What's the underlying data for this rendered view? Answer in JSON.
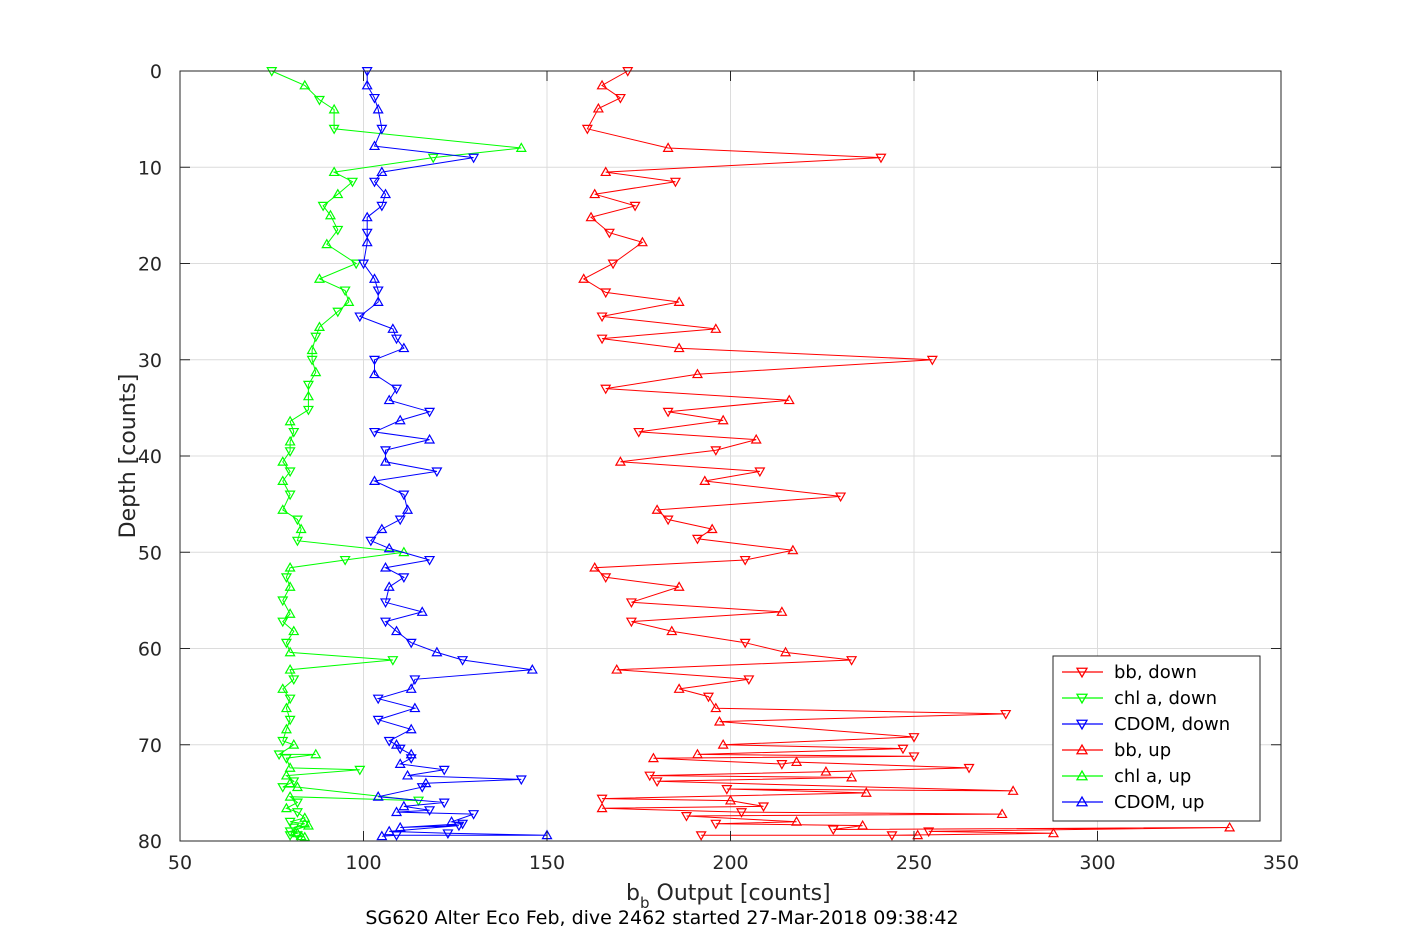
{
  "chart_data": {
    "type": "line",
    "xlabel_main": "b",
    "xlabel_sub": "b",
    "xlabel_rest": "Output [counts]",
    "ylabel": "Depth [counts]",
    "footer": "SG620 Alter Eco Feb, dive 2462 started 27-Mar-2018 09:38:42",
    "xlim": [
      50,
      350
    ],
    "ylim": [
      0,
      80
    ],
    "y_reversed": true,
    "grid": true,
    "legend_position": "bottom-right",
    "xticks": [
      "50",
      "100",
      "150",
      "200",
      "250",
      "300",
      "350"
    ],
    "yticks": [
      "0",
      "10",
      "20",
      "30",
      "40",
      "50",
      "60",
      "70",
      "80"
    ],
    "series": [
      {
        "name": "bb, down",
        "color": "#ff0000",
        "marker": "triangle-down",
        "points": [
          [
            172,
            0
          ],
          [
            165,
            1.5
          ],
          [
            170,
            2.8
          ],
          [
            164,
            3.9
          ],
          [
            161,
            6
          ],
          [
            183,
            8
          ],
          [
            241,
            9
          ],
          [
            166,
            10.5
          ],
          [
            185,
            11.5
          ],
          [
            163,
            12.8
          ],
          [
            174,
            14
          ],
          [
            162,
            15.2
          ],
          [
            167,
            16.8
          ],
          [
            176,
            17.8
          ],
          [
            168,
            20
          ],
          [
            160,
            21.6
          ],
          [
            166,
            23
          ],
          [
            186,
            24
          ],
          [
            165,
            25.5
          ],
          [
            196,
            26.8
          ],
          [
            165,
            27.8
          ],
          [
            186,
            28.8
          ],
          [
            255,
            30
          ],
          [
            191,
            31.5
          ],
          [
            166,
            33
          ],
          [
            216,
            34.2
          ],
          [
            183,
            35.4
          ],
          [
            198,
            36.3
          ],
          [
            175,
            37.5
          ],
          [
            207,
            38.3
          ],
          [
            196,
            39.4
          ],
          [
            170,
            40.6
          ],
          [
            208,
            41.6
          ],
          [
            193,
            42.6
          ],
          [
            230,
            44.2
          ],
          [
            180,
            45.6
          ],
          [
            183,
            46.6
          ],
          [
            195,
            47.6
          ],
          [
            191,
            48.6
          ],
          [
            217,
            49.8
          ],
          [
            204,
            50.8
          ],
          [
            163,
            51.6
          ],
          [
            166,
            52.6
          ],
          [
            186,
            53.6
          ],
          [
            173,
            55.2
          ],
          [
            214,
            56.2
          ],
          [
            173,
            57.2
          ],
          [
            184,
            58.2
          ],
          [
            204,
            59.4
          ],
          [
            215,
            60.4
          ],
          [
            233,
            61.2
          ],
          [
            169,
            62.2
          ],
          [
            205,
            63.2
          ],
          [
            186,
            64.2
          ],
          [
            194,
            65
          ],
          [
            196,
            66.2
          ],
          [
            275,
            66.8
          ],
          [
            197,
            67.6
          ],
          [
            250,
            69.2
          ],
          [
            198,
            70
          ],
          [
            247,
            70.4
          ],
          [
            191,
            71
          ],
          [
            250,
            71.2
          ],
          [
            179,
            71.4
          ],
          [
            214,
            72
          ],
          [
            218,
            71.8
          ],
          [
            265,
            72.4
          ],
          [
            226,
            72.8
          ],
          [
            178,
            73.2
          ],
          [
            233,
            73.4
          ],
          [
            180,
            73.8
          ],
          [
            277,
            74.8
          ],
          [
            199,
            74.6
          ],
          [
            237,
            75
          ],
          [
            165,
            75.6
          ],
          [
            200,
            75.8
          ],
          [
            209,
            76.4
          ],
          [
            165,
            76.6
          ],
          [
            203,
            77
          ],
          [
            274,
            77.2
          ],
          [
            188,
            77.4
          ],
          [
            218,
            78
          ],
          [
            196,
            78.2
          ],
          [
            236,
            78.4
          ],
          [
            228,
            78.8
          ],
          [
            336,
            78.6
          ],
          [
            254,
            79
          ],
          [
            288,
            79.2
          ],
          [
            244,
            79.4
          ],
          [
            251,
            79.4
          ],
          [
            192,
            79.4
          ]
        ]
      },
      {
        "name": "chl a, down",
        "color": "#00ff00",
        "marker": "triangle-down",
        "points": [
          [
            75,
            0
          ],
          [
            84,
            1.5
          ],
          [
            88,
            3
          ],
          [
            92,
            4
          ],
          [
            92,
            6
          ],
          [
            143,
            8
          ],
          [
            119,
            9
          ],
          [
            92,
            10.5
          ],
          [
            97,
            11.5
          ],
          [
            93,
            12.8
          ],
          [
            89,
            14
          ],
          [
            91,
            15
          ],
          [
            93,
            16.5
          ],
          [
            90,
            18
          ],
          [
            98,
            20
          ],
          [
            88,
            21.6
          ],
          [
            95,
            22.8
          ],
          [
            96,
            24
          ],
          [
            93,
            25
          ],
          [
            88,
            26.6
          ],
          [
            87,
            27.6
          ],
          [
            86,
            29
          ],
          [
            86,
            30
          ],
          [
            87,
            31.3
          ],
          [
            85,
            32.6
          ],
          [
            85,
            33.8
          ],
          [
            85,
            35.2
          ],
          [
            80,
            36.4
          ],
          [
            81,
            37.5
          ],
          [
            80,
            38.5
          ],
          [
            80,
            39.5
          ],
          [
            78,
            40.6
          ],
          [
            80,
            41.6
          ],
          [
            78,
            42.6
          ],
          [
            80,
            44
          ],
          [
            78,
            45.6
          ],
          [
            82,
            46.6
          ],
          [
            83,
            47.6
          ],
          [
            82,
            48.8
          ],
          [
            111,
            50
          ],
          [
            95,
            50.8
          ],
          [
            80,
            51.6
          ],
          [
            79,
            52.6
          ],
          [
            80,
            53.6
          ],
          [
            78,
            55
          ],
          [
            80,
            56.4
          ],
          [
            78,
            57.2
          ],
          [
            81,
            58.2
          ],
          [
            79,
            59.4
          ],
          [
            80,
            60.4
          ],
          [
            108,
            61.2
          ],
          [
            80,
            62.2
          ],
          [
            81,
            63.2
          ],
          [
            78,
            64.2
          ],
          [
            80,
            65.2
          ],
          [
            79,
            66.2
          ],
          [
            80,
            67.4
          ],
          [
            79,
            68.4
          ],
          [
            78,
            69.6
          ],
          [
            81,
            70
          ],
          [
            77,
            71
          ],
          [
            87,
            71
          ],
          [
            79,
            71.4
          ],
          [
            80,
            72.4
          ],
          [
            99,
            72.6
          ],
          [
            79,
            73.2
          ],
          [
            81,
            73.8
          ],
          [
            80,
            74
          ],
          [
            78,
            74.4
          ],
          [
            82,
            74.4
          ],
          [
            115,
            75.8
          ],
          [
            80,
            75.4
          ],
          [
            82,
            76
          ],
          [
            79,
            76.6
          ],
          [
            82,
            77
          ],
          [
            84,
            77.6
          ],
          [
            80,
            78
          ],
          [
            84,
            78.2
          ],
          [
            81,
            78.6
          ],
          [
            85,
            78.4
          ],
          [
            80,
            79
          ],
          [
            82,
            79.2
          ],
          [
            80,
            79.4
          ],
          [
            83,
            79.5
          ],
          [
            82,
            79.4
          ],
          [
            84,
            79.6
          ]
        ]
      },
      {
        "name": "CDOM, down",
        "color": "#0000ff",
        "marker": "triangle-down",
        "points": [
          [
            101,
            0
          ],
          [
            101,
            1.5
          ],
          [
            103,
            2.8
          ],
          [
            104,
            4
          ],
          [
            105,
            6
          ],
          [
            103,
            7.8
          ],
          [
            130,
            9
          ],
          [
            105,
            10.5
          ],
          [
            103,
            11.5
          ],
          [
            106,
            12.8
          ],
          [
            105,
            14
          ],
          [
            101,
            15.2
          ],
          [
            101,
            16.8
          ],
          [
            101,
            17.8
          ],
          [
            100,
            20
          ],
          [
            103,
            21.6
          ],
          [
            104,
            22.8
          ],
          [
            104,
            24
          ],
          [
            99,
            25.5
          ],
          [
            108,
            26.8
          ],
          [
            109,
            27.8
          ],
          [
            111,
            28.8
          ],
          [
            103,
            30
          ],
          [
            103,
            31.5
          ],
          [
            109,
            33
          ],
          [
            107,
            34.2
          ],
          [
            118,
            35.4
          ],
          [
            110,
            36.3
          ],
          [
            103,
            37.5
          ],
          [
            118,
            38.3
          ],
          [
            106,
            39.4
          ],
          [
            106,
            40.6
          ],
          [
            120,
            41.6
          ],
          [
            103,
            42.6
          ],
          [
            111,
            44
          ],
          [
            112,
            45.6
          ],
          [
            110,
            46.6
          ],
          [
            105,
            47.6
          ],
          [
            102,
            48.8
          ],
          [
            107,
            49.6
          ],
          [
            118,
            50.8
          ],
          [
            106,
            51.6
          ],
          [
            111,
            52.6
          ],
          [
            107,
            53.6
          ],
          [
            106,
            55.2
          ],
          [
            116,
            56.2
          ],
          [
            106,
            57.2
          ],
          [
            109,
            58.2
          ],
          [
            113,
            59.4
          ],
          [
            120,
            60.4
          ],
          [
            127,
            61.2
          ],
          [
            146,
            62.2
          ],
          [
            114,
            63.2
          ],
          [
            113,
            64.2
          ],
          [
            104,
            65.2
          ],
          [
            114,
            66.2
          ],
          [
            104,
            67.4
          ],
          [
            113,
            68.4
          ],
          [
            107,
            69.6
          ],
          [
            109,
            70
          ],
          [
            110,
            70.4
          ],
          [
            113,
            71
          ],
          [
            113,
            71.4
          ],
          [
            110,
            72
          ],
          [
            122,
            72.6
          ],
          [
            112,
            73.2
          ],
          [
            143,
            73.6
          ],
          [
            117,
            74
          ],
          [
            116,
            74.4
          ],
          [
            104,
            75.4
          ],
          [
            122,
            76
          ],
          [
            111,
            76.4
          ],
          [
            118,
            76.8
          ],
          [
            109,
            77
          ],
          [
            130,
            77.2
          ],
          [
            124,
            78
          ],
          [
            127,
            78.2
          ],
          [
            110,
            78.6
          ],
          [
            126,
            78.4
          ],
          [
            107,
            79
          ],
          [
            123,
            79.2
          ],
          [
            150,
            79.4
          ],
          [
            109,
            79.4
          ],
          [
            105,
            79.5
          ]
        ]
      },
      {
        "name": "bb, up",
        "color": "#ff0000",
        "marker": "triangle-up",
        "points": [],
        "note": ""
      },
      {
        "name": "chl a, up",
        "color": "#00ff00",
        "marker": "triangle-up",
        "points": []
      },
      {
        "name": "CDOM, up",
        "color": "#0000ff",
        "marker": "triangle-up",
        "points": []
      }
    ]
  }
}
